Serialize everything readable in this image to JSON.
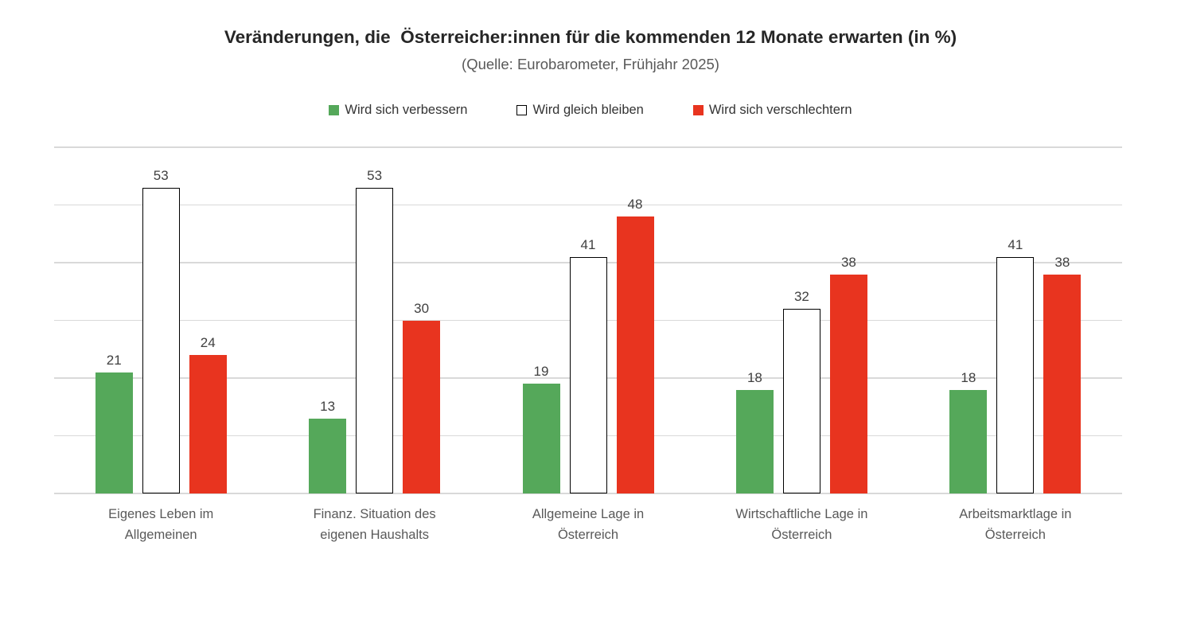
{
  "chart_data": {
    "type": "bar",
    "title": "Veränderungen, die  Österreicher:innen für die kommenden 12 Monate erwarten (in %)",
    "subtitle": "(Quelle: Eurobarometer, Frühjahr 2025)",
    "categories": [
      "Eigenes Leben im\nAllgemeinen",
      "Finanz. Situation des\neigenen Haushalts",
      "Allgemeine Lage in\nÖsterreich",
      "Wirtschaftliche Lage in\nÖsterreich",
      "Arbeitsmarktlage in\nÖsterreich"
    ],
    "series": [
      {
        "name": "Wird sich verbessern",
        "color": "#55A85A",
        "border": "",
        "values": [
          21,
          13,
          19,
          18,
          18
        ]
      },
      {
        "name": "Wird gleich bleiben",
        "color": "#FFFFFF",
        "border": "#000000",
        "values": [
          53,
          53,
          41,
          32,
          41
        ]
      },
      {
        "name": "Wird sich verschlechtern",
        "color": "#E8341F",
        "border": "",
        "values": [
          24,
          30,
          48,
          38,
          38
        ]
      }
    ],
    "ylim": [
      0,
      60
    ],
    "grid_step": 10,
    "grid": true,
    "gridline_color": "#D9D9D9",
    "value_label_color": "#404040",
    "category_label_color": "#595959",
    "legend_position": "top",
    "data_labels": true,
    "y_axis_labels_visible": false
  }
}
